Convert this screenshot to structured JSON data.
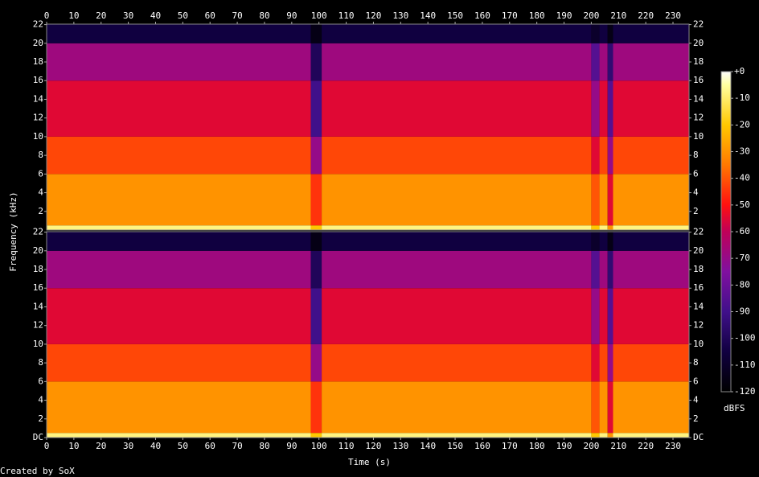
{
  "chart_data": {
    "type": "spectrogram",
    "x_label": "Time (s)",
    "y_label": "Frequency (kHz)",
    "z_label": "dBFS",
    "footer": "Created by SoX",
    "xlim": [
      0,
      235.9
    ],
    "xticks": [
      0,
      10,
      20,
      30,
      40,
      50,
      60,
      70,
      80,
      90,
      100,
      110,
      120,
      130,
      140,
      150,
      160,
      170,
      180,
      190,
      200,
      210,
      220,
      230
    ],
    "zlim": [
      -120,
      0
    ],
    "zticks": [
      {
        "value": 0,
        "label": "+0"
      },
      -10,
      -20,
      -30,
      -40,
      -50,
      -60,
      -70,
      -80,
      -90,
      -100,
      -110,
      -120
    ],
    "colormap": {
      "stops": [
        -120,
        -105,
        -90,
        -75,
        -60,
        -50,
        -35,
        -20,
        -5,
        0
      ],
      "colors": [
        "#000000",
        "#100040",
        "#40108a",
        "#8010a0",
        "#c00058",
        "#ff1010",
        "#ff7800",
        "#ffc800",
        "#ffffa0",
        "#ffffff"
      ]
    },
    "time_bins": [
      0,
      97,
      101,
      200,
      203,
      206,
      208,
      235.9
    ],
    "freq_bins": [
      0,
      0.5,
      6,
      10,
      16,
      20,
      22.05
    ],
    "channels": [
      {
        "ylim": [
          0,
          22.05
        ],
        "yticks": [
          2,
          4,
          6,
          8,
          10,
          12,
          14,
          16,
          18,
          20,
          22
        ],
        "levels": [
          [
            -8,
            -30,
            -42,
            -55,
            -68,
            -105
          ],
          [
            -20,
            -45,
            -70,
            -90,
            -100,
            -115
          ],
          [
            -8,
            -30,
            -42,
            -55,
            -68,
            -105
          ],
          [
            -20,
            -40,
            -55,
            -70,
            -85,
            -110
          ],
          [
            -8,
            -30,
            -42,
            -55,
            -68,
            -105
          ],
          [
            -30,
            -55,
            -70,
            -85,
            -95,
            -115
          ],
          [
            -8,
            -30,
            -42,
            -55,
            -68,
            -105
          ]
        ]
      },
      {
        "ylim": [
          0,
          22.05
        ],
        "yticks": [
          {
            "value": 0,
            "label": "DC"
          },
          2,
          4,
          6,
          8,
          10,
          12,
          14,
          16,
          18,
          20,
          22
        ],
        "levels": [
          [
            -8,
            -30,
            -42,
            -55,
            -68,
            -105
          ],
          [
            -20,
            -45,
            -70,
            -90,
            -100,
            -115
          ],
          [
            -8,
            -30,
            -42,
            -55,
            -68,
            -105
          ],
          [
            -20,
            -40,
            -55,
            -70,
            -85,
            -110
          ],
          [
            -8,
            -30,
            -42,
            -55,
            -68,
            -105
          ],
          [
            -30,
            -55,
            -70,
            -85,
            -95,
            -115
          ],
          [
            -8,
            -30,
            -42,
            -55,
            -68,
            -105
          ]
        ]
      }
    ]
  }
}
